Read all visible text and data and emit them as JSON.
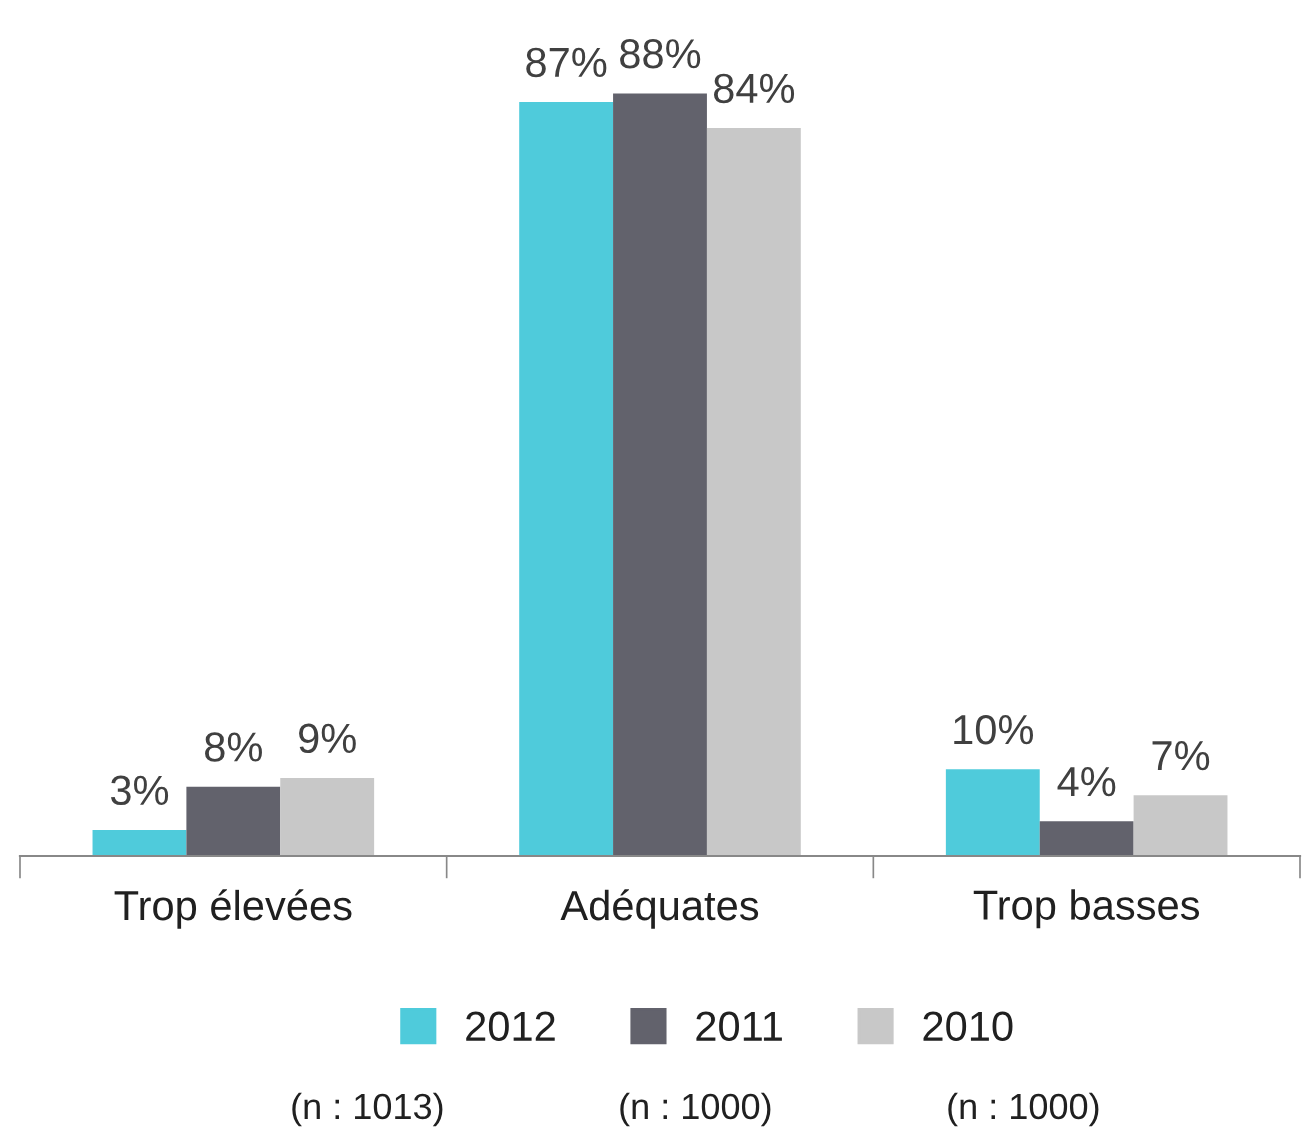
{
  "chart_data": {
    "type": "bar",
    "categories": [
      "Trop élevées",
      "Adéquates",
      "Trop basses"
    ],
    "series": [
      {
        "name": "2012",
        "color": "#4fcbdb",
        "values": [
          3,
          87,
          10
        ],
        "value_labels": [
          "3%",
          "87%",
          "10%"
        ]
      },
      {
        "name": "2011",
        "color": "#62626c",
        "values": [
          8,
          88,
          4
        ],
        "value_labels": [
          "8%",
          "88%",
          "4%"
        ]
      },
      {
        "name": "2010",
        "color": "#c8c8c8",
        "values": [
          9,
          84,
          7
        ],
        "value_labels": [
          "9%",
          "84%",
          "7%"
        ]
      }
    ],
    "legend": "bottom",
    "grid": false,
    "annotations": [
      "(n : 1013)",
      "(n : 1000)",
      "(n : 1000)"
    ]
  }
}
